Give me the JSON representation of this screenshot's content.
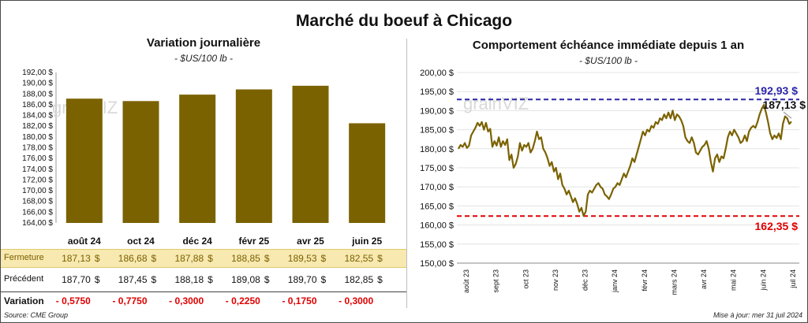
{
  "title": "Marché du boeuf à Chicago",
  "left_chart": {
    "title": "Variation  journalière",
    "unit": "- $US/100 lb -",
    "watermark": "grainVIZ",
    "rows": {
      "fermeture_label": "Fermeture",
      "precedent_label": "Précédent",
      "variation_label": "Variation",
      "currency": "$",
      "fermeture": [
        "187,13",
        "186,68",
        "187,88",
        "188,85",
        "189,53",
        "182,55"
      ],
      "precedent": [
        "187,70",
        "187,45",
        "188,18",
        "189,08",
        "189,70",
        "182,85"
      ],
      "variation": [
        "- 0,5750",
        "- 0,7750",
        "- 0,3000",
        "- 0,2250",
        "- 0,1750",
        "- 0,3000"
      ]
    }
  },
  "right_chart": {
    "title": "Comportement  échéance immédiate depuis 1 an",
    "unit": "- $US/100 lb -",
    "watermark": "grainVIZ",
    "high_label": "192,93 $",
    "low_label": "162,35 $",
    "last_label": "187,13 $"
  },
  "footer": {
    "source": "Source: CME Group",
    "updated": "Mise à jour: mer 31 juil 2024"
  },
  "colors": {
    "bar": "#7b6200",
    "line": "#7b6200",
    "high": "#2b25a8",
    "low": "#e00000"
  },
  "chart_data": [
    {
      "type": "bar",
      "title": "Variation  journalière",
      "categories": [
        "août 24",
        "oct 24",
        "déc 24",
        "févr 25",
        "avr 25",
        "juin 25"
      ],
      "values": [
        187.13,
        186.68,
        187.88,
        188.85,
        189.53,
        182.55
      ],
      "ylim": [
        164,
        192
      ],
      "yticks": [
        164,
        166,
        168,
        170,
        172,
        174,
        176,
        178,
        180,
        182,
        184,
        186,
        188,
        190,
        192
      ],
      "ytick_labels": [
        "164,00 $",
        "166,00 $",
        "168,00 $",
        "170,00 $",
        "172,00 $",
        "174,00 $",
        "176,00 $",
        "178,00 $",
        "180,00 $",
        "182,00 $",
        "184,00 $",
        "186,00 $",
        "188,00 $",
        "190,00 $",
        "192,00 $"
      ]
    },
    {
      "type": "line",
      "title": "Comportement  échéance immédiate depuis 1 an",
      "xlabels": [
        "août 23",
        "sept 23",
        "oct 23",
        "nov 23",
        "déc 23",
        "janv 24",
        "févr 24",
        "mars 24",
        "avr 24",
        "mai 24",
        "juin 24",
        "juil 24"
      ],
      "ylim": [
        150,
        200
      ],
      "yticks": [
        150,
        155,
        160,
        165,
        170,
        175,
        180,
        185,
        190,
        195,
        200
      ],
      "ytick_labels": [
        "150,00 $",
        "155,00 $",
        "160,00 $",
        "165,00 $",
        "170,00 $",
        "175,00 $",
        "180,00 $",
        "185,00 $",
        "190,00 $",
        "195,00 $",
        "200,00 $"
      ],
      "high": 192.93,
      "low": 162.35,
      "last": 187.13,
      "y": [
        180.0,
        181.0,
        180.5,
        181.5,
        180.2,
        180.8,
        183.5,
        184.5,
        185.5,
        186.8,
        186.0,
        187.0,
        185.0,
        186.8,
        184.5,
        185.2,
        180.5,
        182.0,
        180.8,
        183.0,
        180.5,
        182.0,
        181.0,
        182.5,
        177.0,
        178.5,
        175.0,
        176.0,
        178.0,
        181.5,
        179.5,
        181.0,
        180.5,
        181.5,
        179.0,
        180.0,
        182.0,
        184.5,
        182.5,
        183.0,
        180.0,
        179.0,
        177.5,
        175.5,
        176.5,
        174.0,
        175.0,
        172.0,
        173.5,
        170.5,
        169.5,
        168.0,
        169.0,
        167.5,
        166.0,
        167.0,
        165.5,
        163.5,
        164.5,
        162.4,
        163.5,
        168.0,
        169.0,
        168.5,
        169.5,
        170.5,
        171.0,
        170.0,
        169.5,
        168.0,
        167.5,
        166.8,
        168.0,
        169.5,
        170.0,
        171.0,
        170.5,
        172.0,
        173.5,
        172.5,
        174.0,
        175.5,
        177.5,
        176.5,
        178.5,
        180.5,
        182.5,
        184.5,
        183.5,
        185.0,
        184.5,
        186.0,
        185.5,
        187.0,
        186.5,
        188.0,
        187.5,
        189.0,
        188.0,
        189.5,
        188.0,
        190.0,
        187.5,
        189.0,
        188.5,
        187.5,
        186.0,
        183.0,
        182.0,
        181.5,
        183.0,
        181.5,
        179.0,
        178.5,
        179.5,
        180.5,
        181.0,
        182.0,
        180.0,
        176.5,
        174.0,
        177.5,
        178.5,
        176.5,
        178.0,
        177.5,
        180.0,
        183.0,
        184.5,
        183.5,
        185.0,
        184.0,
        183.0,
        181.5,
        182.0,
        183.5,
        182.0,
        184.5,
        185.5,
        186.0,
        185.5,
        187.0,
        189.0,
        190.5,
        191.5,
        189.5,
        187.0,
        184.0,
        182.5,
        183.5,
        182.8,
        184.0,
        182.5,
        186.5,
        188.5,
        188.0,
        186.5,
        187.13
      ]
    }
  ]
}
